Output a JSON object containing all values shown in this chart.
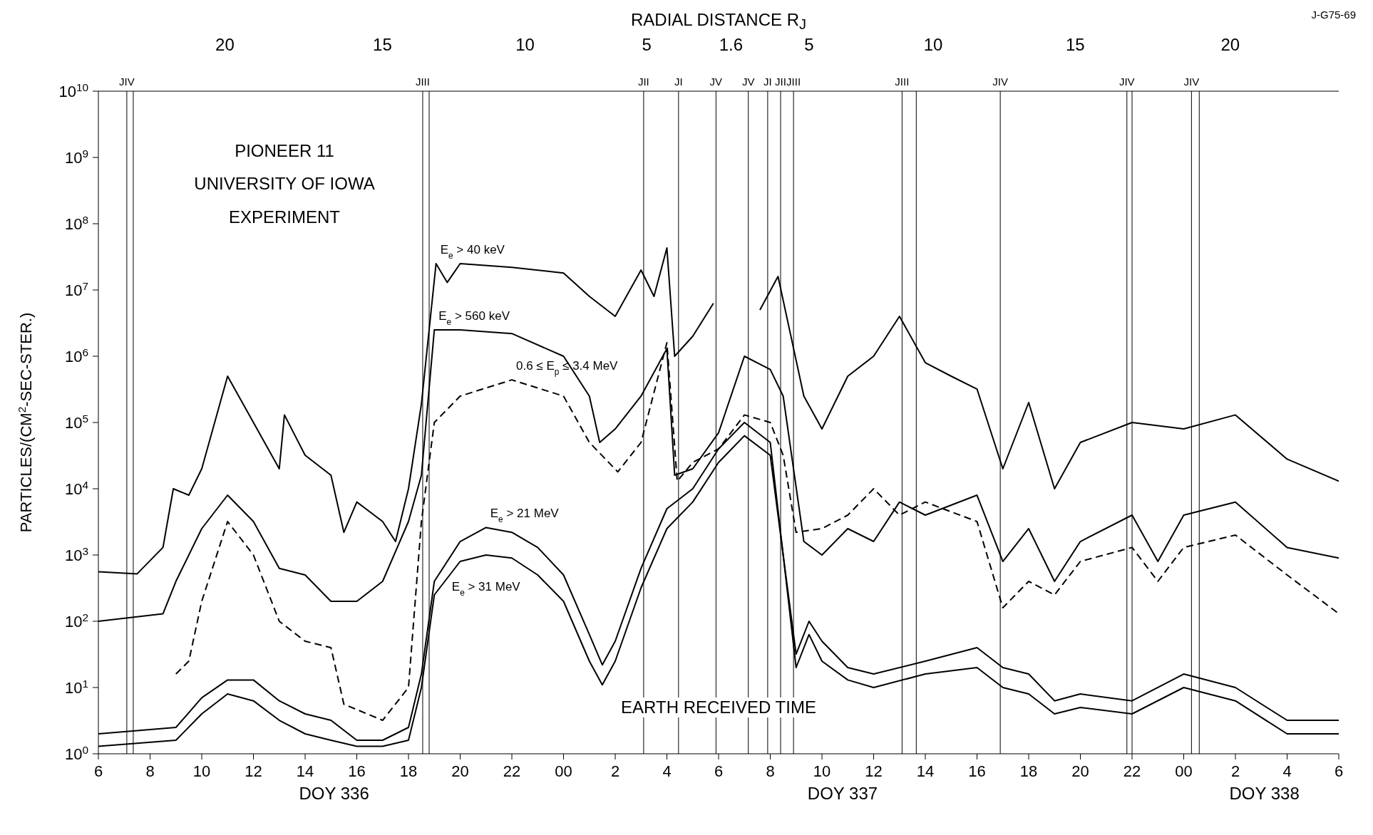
{
  "chart_data": {
    "type": "line",
    "log": "y",
    "marker": "none",
    "ylabel": "PARTICLES/(CM$^{2}$-SEC-STER.)",
    "xlim": [
      "--12-02T06:00",
      "--12-04T06:00"
    ],
    "ylim": [
      1,
      10000000000
    ],
    "xticks": [
      {
        "value": "--12-02T06:00",
        "label": "6"
      },
      {
        "value": "--12-02T08:00",
        "label": "8"
      },
      {
        "value": "--12-02T10:00",
        "label": "10"
      },
      {
        "value": "--12-02T12:00",
        "label": "12"
      },
      {
        "value": "--12-02T14:00",
        "label": "14"
      },
      {
        "value": "--12-02T16:00",
        "label": "16"
      },
      {
        "value": "--12-02T18:00",
        "label": "18"
      },
      {
        "value": "--12-02T20:00",
        "label": "20"
      },
      {
        "value": "--12-02T22:00",
        "label": "22"
      },
      {
        "value": "--12-03T00:00",
        "label": "00"
      },
      {
        "value": "--12-03T02:00",
        "label": "2"
      },
      {
        "value": "--12-03T04:00",
        "label": "4"
      },
      {
        "value": "--12-03T06:00",
        "label": "6"
      },
      {
        "value": "--12-03T08:00",
        "label": "8"
      },
      {
        "value": "--12-03T10:00",
        "label": "10"
      },
      {
        "value": "--12-03T12:00",
        "label": "12"
      },
      {
        "value": "--12-03T14:00",
        "label": "14"
      },
      {
        "value": "--12-03T16:00",
        "label": "16"
      },
      {
        "value": "--12-03T18:00",
        "label": "18"
      },
      {
        "value": "--12-03T20:00",
        "label": "20"
      },
      {
        "value": "--12-03T22:00",
        "label": "22"
      },
      {
        "value": "--12-04T00:00",
        "label": "00"
      },
      {
        "value": "--12-04T02:00",
        "label": "2"
      },
      {
        "value": "--12-04T04:00",
        "label": "4"
      },
      {
        "value": "--12-04T06:00",
        "label": "6"
      }
    ],
    "yticks": [
      {
        "value": 1,
        "label": "10$^{0}$"
      },
      {
        "value": 10,
        "label": "10$^{1}$"
      },
      {
        "value": 100,
        "label": "10$^{2}$"
      },
      {
        "value": 1000,
        "label": "10$^{3}$"
      },
      {
        "value": 10000,
        "label": "10$^{4}$"
      },
      {
        "value": 100000,
        "label": "10$^{5}$"
      },
      {
        "value": 1000000,
        "label": "10$^{6}$"
      },
      {
        "value": 10000000,
        "label": "10$^{7}$"
      },
      {
        "value": 100000000,
        "label": "10$^{8}$"
      },
      {
        "value": 1000000000,
        "label": "10$^{9}$"
      },
      {
        "value": 10000000000,
        "label": "10$^{10}$"
      }
    ],
    "series": [
      {
        "name": "E$_{e}$ > 40 keV",
        "color": "#000000",
        "line_style": "solid",
        "x": [
          "--12-02T06:00",
          "--12-02T07:30",
          "--12-02T08:30",
          "--12-02T08:54",
          "--12-02T09:30",
          "--12-02T10:00",
          "--12-02T11:00",
          "--12-02T12:00",
          "--12-02T13:00",
          "--12-02T13:12",
          "--12-02T14:00",
          "--12-02T15:00",
          "--12-02T15:30",
          "--12-02T16:00",
          "--12-02T17:00",
          "--12-02T17:30",
          "--12-02T18:00",
          "--12-02T18:30",
          "--12-02T19:04",
          "--12-02T19:30",
          "--12-02T20:00",
          "--12-02T22:00",
          "--12-03T00:00",
          "--12-03T01:00",
          "--12-03T02:00",
          "--12-03T03:00",
          "--12-03T03:30",
          "--12-03T04:00",
          "--12-03T04:18",
          "--12-03T05:00",
          "--12-03T05:48",
          "--12-03T06:30",
          "--12-03T07:36",
          "--12-03T08:18",
          "--12-03T09:18",
          "--12-03T10:00",
          "--12-03T11:00",
          "--12-03T12:00",
          "--12-03T13:00",
          "--12-03T14:00",
          "--12-03T15:00",
          "--12-03T16:00",
          "--12-03T17:00",
          "--12-03T18:00",
          "--12-03T19:00",
          "--12-03T20:00",
          "--12-03T22:00",
          "--12-04T00:00",
          "--12-04T02:00",
          "--12-04T04:00",
          "--12-04T06:00"
        ],
        "values": [
          560,
          520,
          1300,
          10000,
          8000,
          20000,
          500000,
          100000,
          20000,
          130000,
          32000,
          16000,
          2200,
          6300,
          3200,
          1600,
          10000,
          190000,
          25000000,
          13000000,
          25000000,
          22000000,
          18000000,
          8000000,
          4000000,
          20000000,
          8000000,
          43000000,
          1000000,
          2000000,
          6300000,
          null,
          5000000,
          16000000,
          250000,
          80000,
          500000,
          1000000,
          4000000,
          800000,
          500000,
          320000,
          20000,
          200000,
          10000,
          50000,
          100000,
          80000,
          130000,
          28000,
          13000
        ]
      },
      {
        "name": "E$_{e}$ > 560 keV",
        "color": "#000000",
        "line_style": "solid",
        "x": [
          "--12-02T06:00",
          "--12-02T08:30",
          "--12-02T09:00",
          "--12-02T10:00",
          "--12-02T11:00",
          "--12-02T12:00",
          "--12-02T13:00",
          "--12-02T14:00",
          "--12-02T15:00",
          "--12-02T16:00",
          "--12-02T17:00",
          "--12-02T18:00",
          "--12-02T18:30",
          "--12-02T19:00",
          "--12-02T20:00",
          "--12-02T22:00",
          "--12-03T00:00",
          "--12-03T01:00",
          "--12-03T01:24",
          "--12-03T02:00",
          "--12-03T03:00",
          "--12-03T04:00",
          "--12-03T04:18",
          "--12-03T05:00",
          "--12-03T06:00",
          "--12-03T07:00",
          "--12-03T08:00",
          "--12-03T08:30",
          "--12-03T09:18",
          "--12-03T10:00",
          "--12-03T11:00",
          "--12-03T12:00",
          "--12-03T13:00",
          "--12-03T14:00",
          "--12-03T16:00",
          "--12-03T17:00",
          "--12-03T18:00",
          "--12-03T19:00",
          "--12-03T20:00",
          "--12-03T22:00",
          "--12-03T23:00",
          "--12-04T00:00",
          "--12-04T02:00",
          "--12-04T04:00",
          "--12-04T06:00"
        ],
        "values": [
          100,
          130,
          400,
          2500,
          8000,
          3200,
          630,
          500,
          200,
          200,
          400,
          3200,
          16000,
          2500000,
          2500000,
          2200000,
          1000000,
          250000,
          50000,
          80000,
          250000,
          1300000,
          16000,
          20000,
          70000,
          1000000,
          630000,
          250000,
          1600,
          1000,
          2500,
          1600,
          6300,
          4000,
          8000,
          800,
          2500,
          400,
          1600,
          4000,
          800,
          4000,
          6300,
          1300,
          900
        ]
      },
      {
        "name": "0.6 ≤ E$_{p}$ ≤ 3.4 MeV",
        "color": "#000000",
        "line_style": "dashed",
        "x": [
          "--12-02T09:00",
          "--12-02T09:30",
          "--12-02T10:00",
          "--12-02T11:00",
          "--12-02T12:00",
          "--12-02T13:00",
          "--12-02T14:00",
          "--12-02T15:00",
          "--12-02T15:30",
          "--12-02T17:00",
          "--12-02T18:00",
          "--12-02T18:30",
          "--12-02T19:00",
          "--12-02T20:00",
          "--12-02T22:00",
          "--12-03T00:00",
          "--12-03T01:00",
          "--12-03T02:06",
          "--12-03T03:00",
          "--12-03T04:00",
          "--12-03T04:24",
          "--12-03T05:00",
          "--12-03T06:00",
          "--12-03T07:00",
          "--12-03T08:00",
          "--12-03T08:30",
          "--12-03T09:00",
          "--12-03T10:00",
          "--12-03T11:00",
          "--12-03T12:00",
          "--12-03T13:00",
          "--12-03T14:00",
          "--12-03T16:00",
          "--12-03T17:00",
          "--12-03T18:00",
          "--12-03T19:00",
          "--12-03T20:00",
          "--12-03T22:00",
          "--12-03T23:00",
          "--12-04T00:00",
          "--12-04T02:00",
          "--12-04T04:00",
          "--12-04T06:00"
        ],
        "values": [
          16,
          25,
          200,
          3200,
          1000,
          100,
          50,
          40,
          5.6,
          3.2,
          10,
          3200,
          100000,
          250000,
          440000,
          250000,
          50000,
          18000,
          50000,
          1600000,
          13000,
          25000,
          40000,
          130000,
          100000,
          32000,
          2200,
          2500,
          4000,
          10000,
          4000,
          6300,
          3200,
          160,
          400,
          250,
          800,
          1300,
          400,
          1300,
          2000,
          500,
          130
        ]
      },
      {
        "name": "E$_{e}$ > 21 MeV",
        "color": "#000000",
        "line_style": "solid",
        "x": [
          "--12-02T06:00",
          "--12-02T09:00",
          "--12-02T10:00",
          "--12-02T11:00",
          "--12-02T12:00",
          "--12-02T13:00",
          "--12-02T14:00",
          "--12-02T15:00",
          "--12-02T16:00",
          "--12-02T17:00",
          "--12-02T18:00",
          "--12-02T18:30",
          "--12-02T19:00",
          "--12-02T20:00",
          "--12-02T21:00",
          "--12-02T22:00",
          "--12-02T23:00",
          "--12-03T00:00",
          "--12-03T01:00",
          "--12-03T01:30",
          "--12-03T02:00",
          "--12-03T03:00",
          "--12-03T04:00",
          "--12-03T05:00",
          "--12-03T06:00",
          "--12-03T07:00",
          "--12-03T08:00",
          "--12-03T08:30",
          "--12-03T09:00",
          "--12-03T09:30",
          "--12-03T10:00",
          "--12-03T11:00",
          "--12-03T12:00",
          "--12-03T14:00",
          "--12-03T16:00",
          "--12-03T17:00",
          "--12-03T18:00",
          "--12-03T19:00",
          "--12-03T20:00",
          "--12-03T22:00",
          "--12-04T00:00",
          "--12-04T02:00",
          "--12-04T04:00",
          "--12-04T06:00"
        ],
        "values": [
          2,
          2.5,
          7,
          13,
          13,
          6.3,
          4,
          3.2,
          1.6,
          1.6,
          2.5,
          16,
          400,
          1600,
          2600,
          2200,
          1300,
          500,
          63,
          22,
          50,
          630,
          5000,
          10000,
          40000,
          100000,
          50000,
          1000,
          32,
          100,
          50,
          20,
          16,
          25,
          40,
          20,
          16,
          6.3,
          8,
          6.3,
          16,
          10,
          3.2,
          3.2
        ]
      },
      {
        "name": "E$_{e}$ > 31 MeV",
        "color": "#000000",
        "line_style": "solid",
        "x": [
          "--12-02T06:00",
          "--12-02T09:00",
          "--12-02T10:00",
          "--12-02T11:00",
          "--12-02T12:00",
          "--12-02T13:00",
          "--12-02T14:00",
          "--12-02T15:00",
          "--12-02T16:00",
          "--12-02T17:00",
          "--12-02T18:00",
          "--12-02T18:30",
          "--12-02T19:00",
          "--12-02T20:00",
          "--12-02T21:00",
          "--12-02T22:00",
          "--12-02T23:00",
          "--12-03T00:00",
          "--12-03T01:00",
          "--12-03T01:30",
          "--12-03T02:00",
          "--12-03T03:00",
          "--12-03T04:00",
          "--12-03T05:00",
          "--12-03T06:00",
          "--12-03T07:00",
          "--12-03T08:00",
          "--12-03T08:30",
          "--12-03T09:00",
          "--12-03T09:30",
          "--12-03T10:00",
          "--12-03T11:00",
          "--12-03T12:00",
          "--12-03T14:00",
          "--12-03T16:00",
          "--12-03T17:00",
          "--12-03T18:00",
          "--12-03T19:00",
          "--12-03T20:00",
          "--12-03T22:00",
          "--12-04T00:00",
          "--12-04T02:00",
          "--12-04T04:00",
          "--12-04T06:00"
        ],
        "values": [
          1.3,
          1.6,
          4,
          8,
          6.3,
          3.2,
          2,
          1.6,
          1.3,
          1.3,
          1.6,
          10,
          250,
          800,
          1000,
          900,
          500,
          200,
          25,
          11,
          25,
          320,
          2500,
          6300,
          25000,
          63000,
          32000,
          1000,
          20,
          63,
          25,
          13,
          10,
          16,
          20,
          10,
          8,
          4,
          5,
          4,
          10,
          6.3,
          2,
          2
        ]
      }
    ],
    "ref_lines": [
      {
        "axis": "x",
        "value": "--12-02T07:06",
        "label": "JIV",
        "color": "#000000"
      },
      {
        "axis": "x",
        "value": "--12-02T07:21",
        "label": null,
        "color": "#000000"
      },
      {
        "axis": "x",
        "value": "--12-02T18:33",
        "label": "JIII",
        "color": "#000000"
      },
      {
        "axis": "x",
        "value": "--12-02T18:48",
        "label": null,
        "color": "#000000"
      },
      {
        "axis": "x",
        "value": "--12-03T03:06",
        "label": "JII",
        "color": "#000000"
      },
      {
        "axis": "x",
        "value": "--12-03T04:27",
        "label": "JI",
        "color": "#000000"
      },
      {
        "axis": "x",
        "value": "--12-03T05:54",
        "label": "JV",
        "color": "#000000"
      },
      {
        "axis": "x",
        "value": "--12-03T07:09",
        "label": "JV",
        "color": "#000000"
      },
      {
        "axis": "x",
        "value": "--12-03T07:54",
        "label": "JI",
        "color": "#000000"
      },
      {
        "axis": "x",
        "value": "--12-03T08:24",
        "label": "JII",
        "color": "#000000"
      },
      {
        "axis": "x",
        "value": "--12-03T08:54",
        "label": "JIII",
        "color": "#000000"
      },
      {
        "axis": "x",
        "value": "--12-03T13:06",
        "label": "JIII",
        "color": "#000000"
      },
      {
        "axis": "x",
        "value": "--12-03T13:39",
        "label": null,
        "color": "#000000"
      },
      {
        "axis": "x",
        "value": "--12-03T16:54",
        "label": "JIV",
        "color": "#000000"
      },
      {
        "axis": "x",
        "value": "--12-03T21:48",
        "label": "JIV",
        "color": "#000000"
      },
      {
        "axis": "x",
        "value": "--12-03T22:00",
        "label": null,
        "color": "#000000"
      },
      {
        "axis": "x",
        "value": "--12-04T00:18",
        "label": "JIV",
        "color": "#000000"
      },
      {
        "axis": "x",
        "value": "--12-04T00:36",
        "label": null,
        "color": "#000000"
      }
    ],
    "annotations": [
      "PIONEER 11",
      "UNIVERSITY OF IOWA",
      "EXPERIMENT",
      "EARTH RECEIVED TIME",
      "DOY 336",
      "DOY 337",
      "DOY 338",
      "J-G75-69",
      "RADIAL DISTANCE R$_{J}$",
      "20",
      "15",
      "10",
      "5",
      "1.6",
      "5",
      "10",
      "15",
      "20"
    ]
  }
}
